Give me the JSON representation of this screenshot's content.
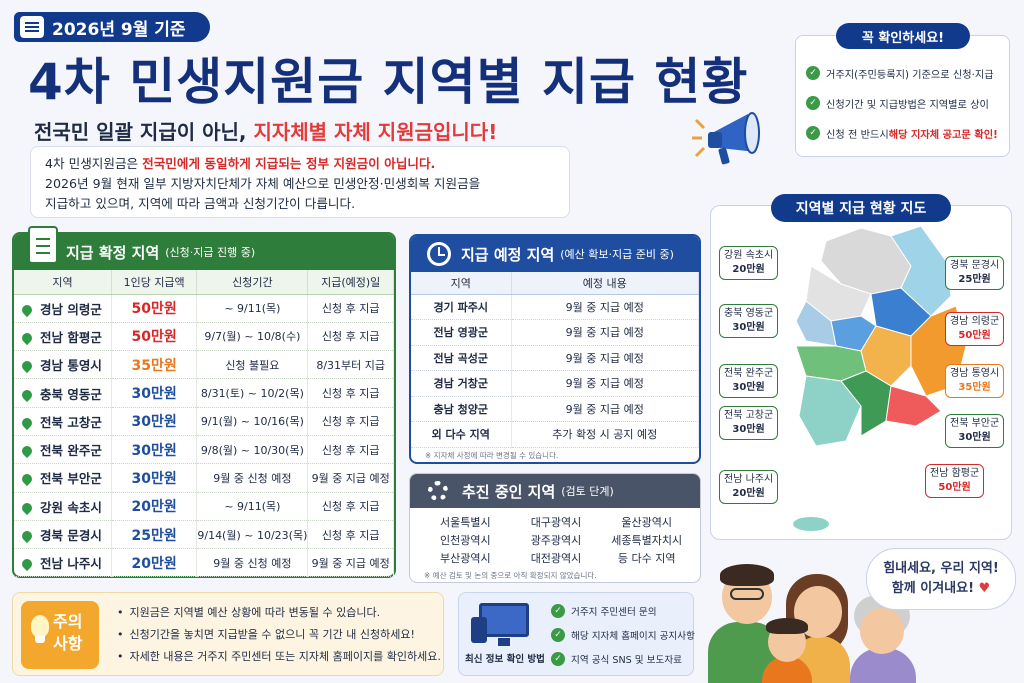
{
  "header": {
    "date_tag": "2026년 9월 기준",
    "title": "4차 민생지원금 지역별 지급 현황",
    "subtitle_plain": "전국민 일괄 지급이 아닌,",
    "subtitle_highlight": "지자체별 자체 지원금입니다!",
    "intro_line1_plain": "4차 민생지원금은 ",
    "intro_line1_red": "전국민에게 동일하게 지급되는 정부 지원금이 아닙니다.",
    "intro_line2": "2026년 9월 현재 일부 지방자치단체가 자체 예산으로 민생안정·민생회복 지원금을",
    "intro_line3": "지급하고 있으며, 지역에 따라 금액과 신청기간이 다릅니다."
  },
  "checklist": {
    "title": "꼭 확인하세요!",
    "item1": "거주지(주민등록지) 기준으로 신청·지급",
    "item2": "신청기간 및 지급방법은 지역별로 상이",
    "item3_plain": "신청 전 반드시 ",
    "item3_red": "해당 지자체 공고문 확인!"
  },
  "confirmed": {
    "title": "지급 확정 지역",
    "subtitle": "(신청·지급 진행 중)",
    "headers": [
      "지역",
      "1인당 지급액",
      "신청기간",
      "지급(예정)일"
    ],
    "rows": [
      {
        "region": "경남 의령군",
        "amount": "50만원",
        "period": "~ 9/11(목)",
        "pay": "신청 후 지급",
        "color": "#d62828"
      },
      {
        "region": "전남 함평군",
        "amount": "50만원",
        "period": "9/7(월) ~ 10/8(수)",
        "pay": "신청 후 지급",
        "color": "#d62828"
      },
      {
        "region": "경남 통영시",
        "amount": "35만원",
        "period": "신청 불필요",
        "pay": "8/31부터 지급",
        "color": "#e8771e"
      },
      {
        "region": "충북 영동군",
        "amount": "30만원",
        "period": "8/31(토) ~ 10/2(목)",
        "pay": "신청 후 지급",
        "color": "#1f4ea0"
      },
      {
        "region": "전북 고창군",
        "amount": "30만원",
        "period": "9/1(월) ~ 10/16(목)",
        "pay": "신청 후 지급",
        "color": "#1f4ea0"
      },
      {
        "region": "전북 완주군",
        "amount": "30만원",
        "period": "9/8(월) ~ 10/30(목)",
        "pay": "신청 후 지급",
        "color": "#1f4ea0"
      },
      {
        "region": "전북 부안군",
        "amount": "30만원",
        "period": "9월 중 신청 예정",
        "pay": "9월 중 지급 예정",
        "color": "#1f4ea0"
      },
      {
        "region": "강원 속초시",
        "amount": "20만원",
        "period": "~ 9/11(목)",
        "pay": "신청 후 지급",
        "color": "#1f4ea0"
      },
      {
        "region": "경북 문경시",
        "amount": "25만원",
        "period": "9/14(월) ~ 10/23(목)",
        "pay": "신청 후 지급",
        "color": "#1f4ea0"
      },
      {
        "region": "전남 나주시",
        "amount": "20만원",
        "period": "9월 중 신청 예정",
        "pay": "9월 중 지급 예정",
        "color": "#1f4ea0"
      }
    ]
  },
  "scheduled": {
    "title": "지급 예정 지역",
    "subtitle": "(예산 확보·지급 준비 중)",
    "headers": [
      "지역",
      "예정 내용"
    ],
    "rows": [
      {
        "region": "경기 파주시",
        "plan": "9월 중 지급 예정"
      },
      {
        "region": "전남 영광군",
        "plan": "9월 중 지급 예정"
      },
      {
        "region": "전남 곡성군",
        "plan": "9월 중 지급 예정"
      },
      {
        "region": "경남 거창군",
        "plan": "9월 중 지급 예정"
      },
      {
        "region": "충남 청양군",
        "plan": "9월 중 지급 예정"
      },
      {
        "region": "외 다수 지역",
        "plan": "추가 확정 시 공지 예정"
      }
    ],
    "note": "※ 지자체 사정에 따라 변경될 수 있습니다."
  },
  "progress": {
    "title": "추진 중인 지역",
    "subtitle": "(검토 단계)",
    "cities": [
      "서울특별시",
      "대구광역시",
      "울산광역시",
      "인천광역시",
      "광주광역시",
      "세종특별자치시",
      "부산광역시",
      "대전광역시",
      "등 다수 지역"
    ],
    "note": "※ 예산 검토 및 논의 중으로 아직 확정되지 않았습니다."
  },
  "map": {
    "title": "지역별 지급 현황 지도",
    "labels": [
      {
        "name": "강원 속초시",
        "amount": "20만원",
        "tone": "n"
      },
      {
        "name": "경북 문경시",
        "amount": "25만원",
        "tone": "n"
      },
      {
        "name": "충북 영동군",
        "amount": "30만원",
        "tone": "n"
      },
      {
        "name": "경남 의령군",
        "amount": "50만원",
        "tone": "r"
      },
      {
        "name": "전북 완주군",
        "amount": "30만원",
        "tone": "n"
      },
      {
        "name": "경남 통영시",
        "amount": "35만원",
        "tone": "o"
      },
      {
        "name": "전북 고창군",
        "amount": "30만원",
        "tone": "n"
      },
      {
        "name": "전북 부안군",
        "amount": "30만원",
        "tone": "n"
      },
      {
        "name": "전남 함평군",
        "amount": "50만원",
        "tone": "r"
      },
      {
        "name": "전남 나주시",
        "amount": "20만원",
        "tone": "n"
      }
    ]
  },
  "caution": {
    "title_line1": "주의",
    "title_line2": "사항",
    "items": [
      "지원금은 지역별 예산 상황에 따라 변동될 수 있습니다.",
      "신청기간을 놓치면 지급받을 수 없으니 꼭 기간 내 신청하세요!",
      "자세한 내용은 거주지 주민센터 또는 지자체 홈페이지를 확인하세요."
    ]
  },
  "info": {
    "label": "최신 정보 확인 방법",
    "items": [
      "거주지 주민센터 문의",
      "해당 지자체 홈페이지 공지사항",
      "지역 공식 SNS 및 보도자료"
    ]
  },
  "speech": {
    "line1": "힘내세요, 우리 지역!",
    "line2": "함께 이겨내요!",
    "heart": "♥"
  },
  "colors": {
    "navy": "#123a8c",
    "green": "#2f7d3a",
    "blue": "#1f4ea0",
    "red": "#d62828",
    "orange": "#e8771e"
  }
}
